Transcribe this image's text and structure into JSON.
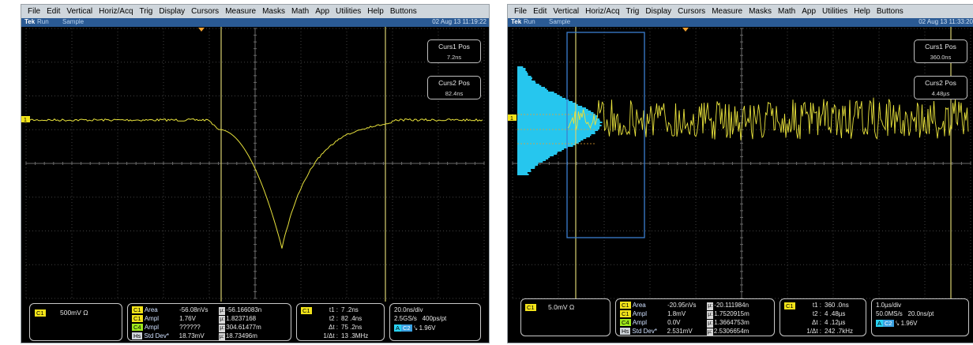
{
  "menu": [
    "File",
    "Edit",
    "Vertical",
    "Horiz/Acq",
    "Trig",
    "Display",
    "Cursors",
    "Measure",
    "Masks",
    "Math",
    "App",
    "Utilities",
    "Help",
    "Buttons"
  ],
  "colors": {
    "trace": "#e8e23c",
    "histogram": "#26c6ee",
    "cursor": "#d8d070",
    "gate": "#3b7fd0",
    "grid": "#4a4a4a",
    "status_bar": "#2a5a94"
  },
  "left": {
    "status": {
      "brand": "Tek",
      "run": "Run",
      "acq": "Sample",
      "datetime": "02 Aug 13 11:19:22"
    },
    "curs1": {
      "label": "Curs1 Pos",
      "value": "7.2ns"
    },
    "curs2": {
      "label": "Curs2 Pos",
      "value": "82.4ns"
    },
    "channel": {
      "tag": "C1",
      "scale": "500mV Ω",
      "marker": "1"
    },
    "measurements": [
      {
        "chip": "C1",
        "name": "Area",
        "value": "-56.08nVs",
        "stat": "-56.166083n"
      },
      {
        "chip": "C1",
        "name": "Ampl",
        "value": "1.76V",
        "stat": "1.8237168"
      },
      {
        "chip": "C4",
        "name": "Ampl",
        "value": "??????",
        "stat": "304.61477m"
      },
      {
        "chip": "Hs",
        "name": "Std Dev*",
        "value": "18.73mV",
        "stat": "18.73496m"
      }
    ],
    "mu_symbol": "µ:",
    "cursor_readout": {
      "tag": "C1",
      "t1": "7 .2ns",
      "t2": "82 .4ns",
      "dt": "75 .2ns",
      "inv": "13 .3MHz"
    },
    "labels": {
      "t1": "t1 :",
      "t2": "t2 :",
      "dt": "Δt :",
      "inv": "1/Δt :"
    },
    "timebase": {
      "div": "20.0ns/div",
      "rate": "2.5GS/s",
      "pts": "400ps/pt",
      "trig_chip": "A",
      "trig_src": "C2",
      "trig": "⤥ 1.96V"
    }
  },
  "right": {
    "status": {
      "brand": "Tek",
      "run": "Run",
      "acq": "Sample",
      "datetime": "02 Aug 13 11:33:20"
    },
    "curs1": {
      "label": "Curs1 Pos",
      "value": "360.0ns"
    },
    "curs2": {
      "label": "Curs2 Pos",
      "value": "4.48µs"
    },
    "channel": {
      "tag": "C1",
      "scale": "5.0mV Ω",
      "marker": "1"
    },
    "measurements": [
      {
        "chip": "C1",
        "name": "Area",
        "value": "-20.95nVs",
        "stat": "-20.111984n"
      },
      {
        "chip": "C1",
        "name": "Ampl",
        "value": "1.8mV",
        "stat": "1.7520915m"
      },
      {
        "chip": "C4",
        "name": "Ampl",
        "value": "0.0V",
        "stat": "1.3664753m"
      },
      {
        "chip": "Hs",
        "name": "Std Dev*",
        "value": "2.531mV",
        "stat": "2.5306654m"
      }
    ],
    "mu_symbol": "µ:",
    "cursor_readout": {
      "tag": "C1",
      "t1": "360 .0ns",
      "t2": "4 .48µs",
      "dt": "4 .12µs",
      "inv": "242 .7kHz"
    },
    "labels": {
      "t1": "t1 :",
      "t2": "t2 :",
      "dt": "Δt :",
      "inv": "1/Δt :"
    },
    "timebase": {
      "div": "1.0µs/div",
      "rate": "50.0MS/s",
      "pts": "20.0ns/pt",
      "trig_chip": "A",
      "trig_src": "C2",
      "trig": "⤥ 1.96V"
    }
  }
}
